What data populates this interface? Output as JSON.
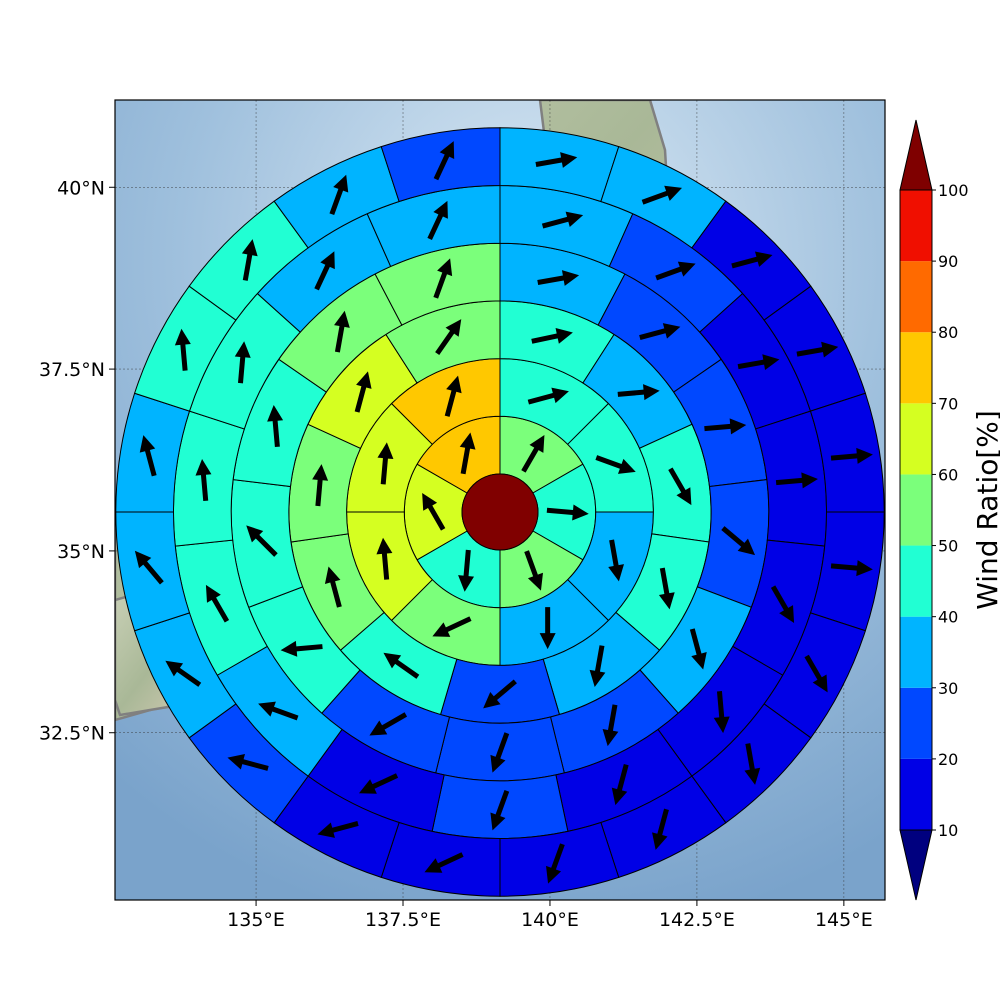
{
  "map": {
    "lon_range": [
      132.6,
      145.7
    ],
    "lat_range": [
      30.2,
      41.2
    ],
    "lon_ticks": [
      {
        "value": 135,
        "label": "135°E"
      },
      {
        "value": 137.5,
        "label": "137.5°E"
      },
      {
        "value": 140,
        "label": "140°E"
      },
      {
        "value": 142.5,
        "label": "142.5°E"
      },
      {
        "value": 145,
        "label": "145°E"
      }
    ],
    "lat_ticks": [
      {
        "value": 40,
        "label": "40°N"
      },
      {
        "value": 37.5,
        "label": "37.5°N"
      },
      {
        "value": 35,
        "label": "35°N"
      },
      {
        "value": 32.5,
        "label": "32.5°N"
      }
    ],
    "grid": true,
    "colors": {
      "ocean": "#8fb4d6",
      "ocean_light": "#dbe9f4",
      "land": "#b7c2a6",
      "coastline": "#808080",
      "center": "#800000"
    }
  },
  "colorbar": {
    "label": "Wind Ratio[%]",
    "levels": [
      10,
      20,
      30,
      40,
      50,
      60,
      70,
      80,
      90,
      100
    ],
    "colors": [
      "#0000e6",
      "#0048ff",
      "#00b4ff",
      "#21ffd3",
      "#7bff7b",
      "#d5ff21",
      "#ffc800",
      "#ff6a00",
      "#f00f00"
    ],
    "under_color": "#00007f",
    "over_color": "#7f0000"
  },
  "chart_data": {
    "type": "heatmap",
    "center_value_color": "#800000",
    "rings": [
      {
        "ring": 1,
        "sectors": [
          {
            "value": 52,
            "direction_deg": 30
          },
          {
            "value": 42,
            "direction_deg": 95
          },
          {
            "value": 55,
            "direction_deg": 160
          },
          {
            "value": 48,
            "direction_deg": 185
          },
          {
            "value": 62,
            "direction_deg": 330
          },
          {
            "value": 75,
            "direction_deg": 10
          }
        ]
      },
      {
        "ring": 2,
        "sectors": [
          {
            "value": 45,
            "direction_deg": 75
          },
          {
            "value": 42,
            "direction_deg": 110
          },
          {
            "value": 35,
            "direction_deg": 170
          },
          {
            "value": 35,
            "direction_deg": 180
          },
          {
            "value": 55,
            "direction_deg": 245
          },
          {
            "value": 62,
            "direction_deg": 355
          },
          {
            "value": 62,
            "direction_deg": 5
          },
          {
            "value": 75,
            "direction_deg": 15
          }
        ]
      },
      {
        "ring": 3,
        "sectors": [
          {
            "value": 42,
            "direction_deg": 78
          },
          {
            "value": 35,
            "direction_deg": 85
          },
          {
            "value": 45,
            "direction_deg": 150
          },
          {
            "value": 45,
            "direction_deg": 170
          },
          {
            "value": 35,
            "direction_deg": 190
          },
          {
            "value": 22,
            "direction_deg": 230
          },
          {
            "value": 45,
            "direction_deg": 305
          },
          {
            "value": 52,
            "direction_deg": 345
          },
          {
            "value": 52,
            "direction_deg": 5
          },
          {
            "value": 62,
            "direction_deg": 15
          },
          {
            "value": 55,
            "direction_deg": 35
          }
        ]
      },
      {
        "ring": 4,
        "sectors": [
          {
            "value": 35,
            "direction_deg": 80
          },
          {
            "value": 22,
            "direction_deg": 75
          },
          {
            "value": 22,
            "direction_deg": 85
          },
          {
            "value": 22,
            "direction_deg": 130
          },
          {
            "value": 32,
            "direction_deg": 165
          },
          {
            "value": 22,
            "direction_deg": 190
          },
          {
            "value": 22,
            "direction_deg": 200
          },
          {
            "value": 22,
            "direction_deg": 240
          },
          {
            "value": 42,
            "direction_deg": 265
          },
          {
            "value": 42,
            "direction_deg": 315
          },
          {
            "value": 45,
            "direction_deg": 355
          },
          {
            "value": 55,
            "direction_deg": 10
          },
          {
            "value": 55,
            "direction_deg": 20
          }
        ]
      },
      {
        "ring": 5,
        "sectors": [
          {
            "value": 35,
            "direction_deg": 75
          },
          {
            "value": 25,
            "direction_deg": 70
          },
          {
            "value": 18,
            "direction_deg": 80
          },
          {
            "value": 18,
            "direction_deg": 85
          },
          {
            "value": 18,
            "direction_deg": 150
          },
          {
            "value": 18,
            "direction_deg": 175
          },
          {
            "value": 18,
            "direction_deg": 195
          },
          {
            "value": 22,
            "direction_deg": 200
          },
          {
            "value": 18,
            "direction_deg": 245
          },
          {
            "value": 32,
            "direction_deg": 290
          },
          {
            "value": 42,
            "direction_deg": 330
          },
          {
            "value": 42,
            "direction_deg": 355
          },
          {
            "value": 42,
            "direction_deg": 5
          },
          {
            "value": 35,
            "direction_deg": 25
          },
          {
            "value": 35,
            "direction_deg": 25
          }
        ]
      },
      {
        "ring": 6,
        "sectors": [
          {
            "value": 35,
            "direction_deg": 80
          },
          {
            "value": 35,
            "direction_deg": 70
          },
          {
            "value": 18,
            "direction_deg": 75
          },
          {
            "value": 18,
            "direction_deg": 80
          },
          {
            "value": 18,
            "direction_deg": 85
          },
          {
            "value": 18,
            "direction_deg": 95
          },
          {
            "value": 18,
            "direction_deg": 150
          },
          {
            "value": 18,
            "direction_deg": 170
          },
          {
            "value": 18,
            "direction_deg": 195
          },
          {
            "value": 18,
            "direction_deg": 200
          },
          {
            "value": 18,
            "direction_deg": 245
          },
          {
            "value": 18,
            "direction_deg": 255
          },
          {
            "value": 22,
            "direction_deg": 285
          },
          {
            "value": 35,
            "direction_deg": 305
          },
          {
            "value": 35,
            "direction_deg": 320
          },
          {
            "value": 35,
            "direction_deg": 345
          },
          {
            "value": 42,
            "direction_deg": 355
          },
          {
            "value": 42,
            "direction_deg": 10
          },
          {
            "value": 35,
            "direction_deg": 20
          },
          {
            "value": 22,
            "direction_deg": 25
          }
        ]
      }
    ]
  }
}
